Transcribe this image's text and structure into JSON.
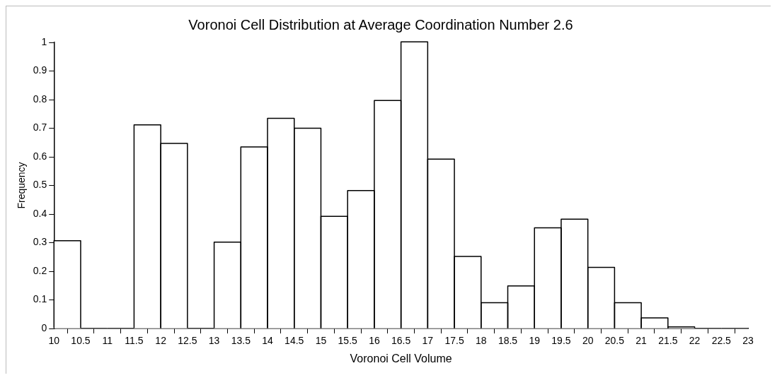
{
  "chart_data": {
    "type": "histogram",
    "title": "Voronoi Cell Distribution at Average Coordination Number 2.6",
    "xlabel": "Voronoi Cell Volume",
    "ylabel": "Frequency",
    "bins": [
      10,
      10.5,
      11,
      11.5,
      12,
      12.5,
      13,
      13.5,
      14,
      14.5,
      15,
      15.5,
      16,
      16.5,
      17,
      17.5,
      18,
      18.5,
      19,
      19.5,
      20,
      20.5,
      21,
      21.5,
      22,
      22.5,
      23
    ],
    "values": [
      0.305,
      0,
      0,
      0.71,
      0.645,
      0,
      0.3,
      0.633,
      0.733,
      0.698,
      0.39,
      0.48,
      0.795,
      1,
      0.59,
      0.25,
      0.088,
      0.147,
      0.35,
      0.38,
      0.212,
      0.088,
      0.035,
      0.004,
      0,
      0
    ],
    "color": "#ffffff",
    "xlim": [
      10,
      23
    ],
    "xticks": [
      10,
      10.5,
      11,
      11.5,
      12,
      12.5,
      13,
      13.5,
      14,
      14.5,
      15,
      15.5,
      16,
      16.5,
      17,
      17.5,
      18,
      18.5,
      19,
      19.5,
      20,
      20.5,
      21,
      21.5,
      22,
      22.5,
      23
    ],
    "ylim": [
      0,
      1
    ],
    "yticks": [
      0,
      0.1,
      0.2,
      0.3,
      0.4,
      0.5,
      0.6,
      0.7,
      0.8,
      0.9,
      1
    ],
    "grid": false,
    "legend": false
  }
}
